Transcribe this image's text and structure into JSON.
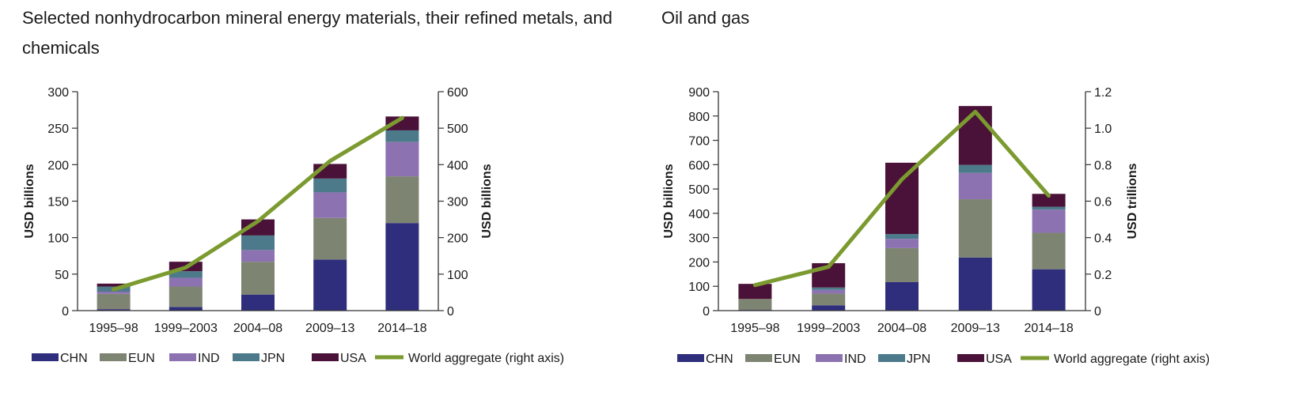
{
  "colors": {
    "CHN": "#2e2e7c",
    "EUN": "#7e8472",
    "IND": "#8d72b1",
    "JPN": "#4d7a8a",
    "USA": "#4a1238",
    "World aggregate (right axis)": "#7b9a2f"
  },
  "chart_data": [
    {
      "type": "bar",
      "stacked": true,
      "title": "Selected nonhydrocarbon mineral energy materials, their refined metals, and chemicals",
      "categories": [
        "1995–98",
        "1999–2003",
        "2004–08",
        "2009–13",
        "2014–18"
      ],
      "series": [
        {
          "name": "CHN",
          "values": [
            2,
            5,
            22,
            70,
            120
          ]
        },
        {
          "name": "EUN",
          "values": [
            21,
            28,
            45,
            57,
            64
          ]
        },
        {
          "name": "IND",
          "values": [
            3,
            12,
            16,
            35,
            47
          ]
        },
        {
          "name": "JPN",
          "values": [
            7,
            9,
            20,
            19,
            16
          ]
        },
        {
          "name": "USA",
          "values": [
            4,
            13,
            22,
            20,
            19
          ]
        }
      ],
      "line": {
        "name": "World aggregate (right axis)",
        "values": [
          58,
          118,
          245,
          410,
          528
        ]
      },
      "ylabel": "USD billions",
      "y2label": "USD billions",
      "ylim": [
        0,
        300
      ],
      "y2lim": [
        0,
        600
      ],
      "yticks": [
        0,
        50,
        100,
        150,
        200,
        250,
        300
      ],
      "y2ticks": [
        0,
        100,
        200,
        300,
        400,
        500,
        600
      ],
      "y2ticklabels": [
        "0",
        "100",
        "200",
        "300",
        "400",
        "500",
        "600"
      ],
      "legend": [
        "CHN",
        "EUN",
        "IND",
        "JPN",
        "USA",
        "World aggregate (right axis)"
      ],
      "legend_position": "bottom",
      "grid": false
    },
    {
      "type": "bar",
      "stacked": true,
      "title": "Oil and gas",
      "categories": [
        "1995–98",
        "1999–2003",
        "2004–08",
        "2009–13",
        "2014–18"
      ],
      "series": [
        {
          "name": "CHN",
          "values": [
            3,
            22,
            117,
            218,
            170
          ]
        },
        {
          "name": "EUN",
          "values": [
            45,
            48,
            140,
            240,
            150
          ]
        },
        {
          "name": "IND",
          "values": [
            0,
            15,
            38,
            108,
            95
          ]
        },
        {
          "name": "JPN",
          "values": [
            0,
            10,
            20,
            33,
            12
          ]
        },
        {
          "name": "USA",
          "values": [
            62,
            100,
            293,
            242,
            53
          ]
        }
      ],
      "line": {
        "name": "World aggregate (right axis)",
        "values": [
          0.14,
          0.24,
          0.72,
          1.09,
          0.63
        ]
      },
      "ylabel": "USD billions",
      "y2label": "USD trillions",
      "ylim": [
        0,
        900
      ],
      "y2lim": [
        0,
        1.2
      ],
      "yticks": [
        0,
        100,
        200,
        300,
        400,
        500,
        600,
        700,
        800,
        900
      ],
      "y2ticks": [
        0,
        0.2,
        0.4,
        0.6,
        0.8,
        1.0,
        1.2
      ],
      "y2ticklabels": [
        "0",
        "0.2",
        "0.4",
        "0.6",
        "0.8",
        "1.0",
        "1.2"
      ],
      "legend": [
        "CHN",
        "EUN",
        "IND",
        "JPN",
        "USA",
        "World aggregate (right axis)"
      ],
      "legend_position": "bottom",
      "grid": false
    }
  ]
}
